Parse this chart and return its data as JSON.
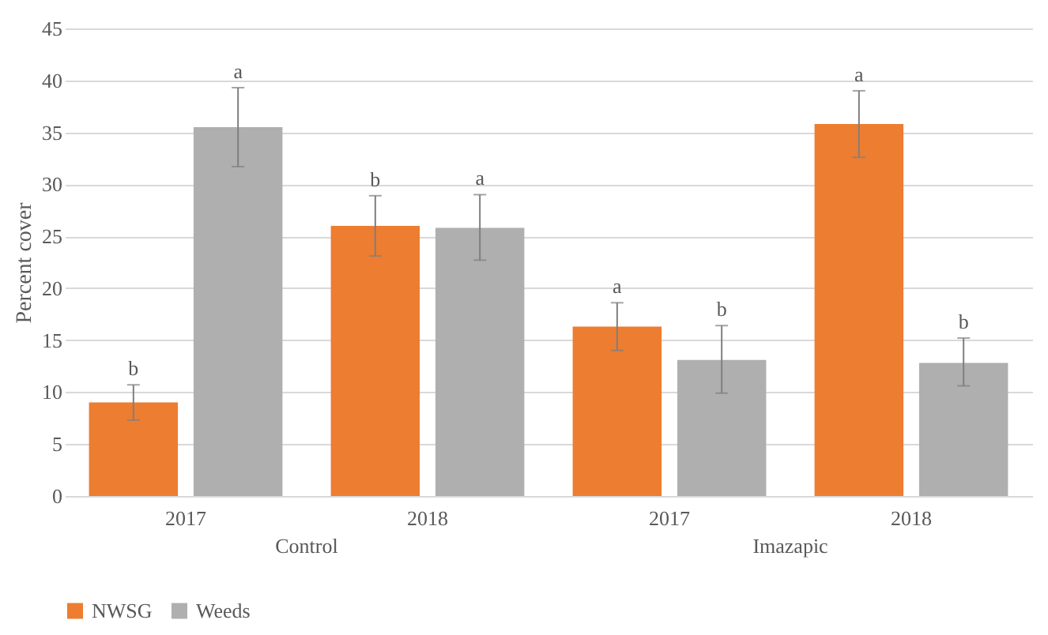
{
  "chart_data": {
    "type": "bar",
    "ylabel": "Percent cover",
    "categories": [
      "2017",
      "2018",
      "2017",
      "2018"
    ],
    "annotations": [
      "Control",
      "Imazapic"
    ],
    "series": [
      {
        "name": "NWSG",
        "color": "#ed7d31",
        "values": [
          9.0,
          26.0,
          16.3,
          35.8
        ],
        "errors": [
          [
            7.3,
            10.7
          ],
          [
            23.1,
            28.9
          ],
          [
            14.0,
            18.6
          ],
          [
            32.6,
            39.0
          ]
        ],
        "value_labels": [
          "b",
          "b",
          "a",
          "a"
        ]
      },
      {
        "name": "Weeds",
        "color": "#afafaf",
        "values": [
          35.5,
          25.8,
          13.1,
          12.8
        ],
        "errors": [
          [
            31.7,
            39.3
          ],
          [
            22.7,
            29.0
          ],
          [
            9.9,
            16.4
          ],
          [
            10.6,
            15.2
          ]
        ],
        "value_labels": [
          "a",
          "a",
          "b",
          "b"
        ]
      }
    ],
    "ylim": [
      0,
      45
    ],
    "yticks": [
      0,
      5,
      10,
      15,
      20,
      25,
      30,
      35,
      40,
      45
    ],
    "grid": "y",
    "legend": "bottom"
  }
}
